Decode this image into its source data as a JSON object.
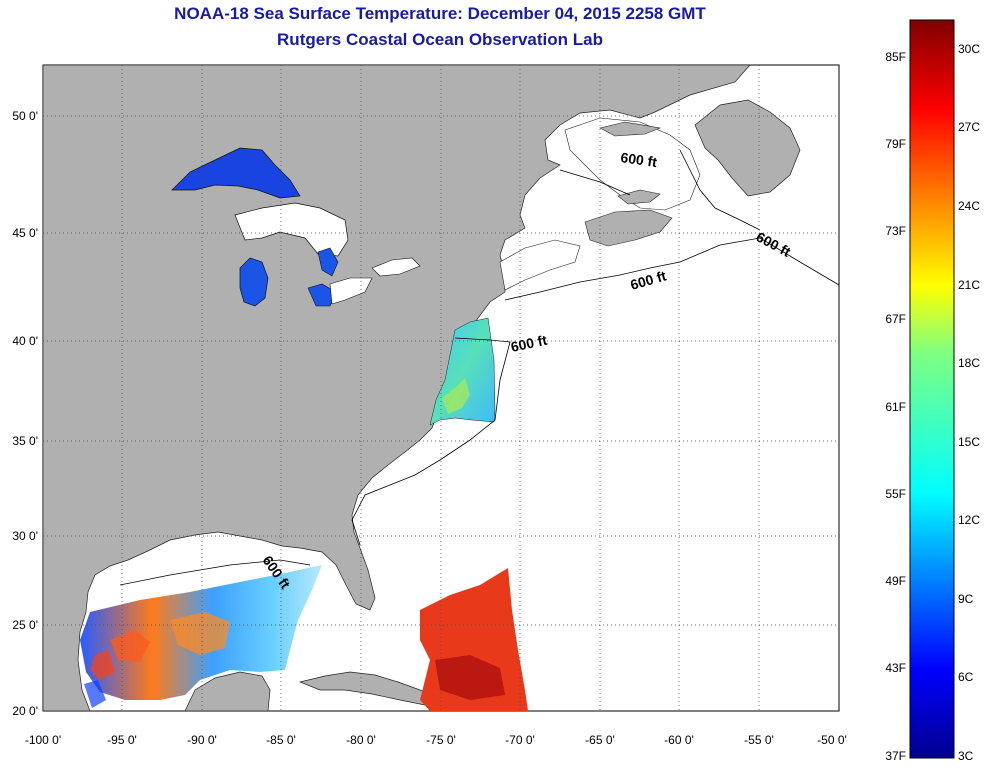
{
  "title": "NOAA-18 Sea Surface Temperature:  December 04, 2015 2258 GMT",
  "subtitle": "Rutgers Coastal Ocean Observation Lab",
  "lat_ticks": [
    "20 0'",
    "25 0'",
    "30 0'",
    "35 0'",
    "40 0'",
    "45 0'",
    "50 0'"
  ],
  "lon_ticks": [
    "-100 0'",
    "-95 0'",
    "-90 0'",
    "-85 0'",
    "-80 0'",
    "-75 0'",
    "-70 0'",
    "-65 0'",
    "-60 0'",
    "-55 0'",
    "-50 0'"
  ],
  "contour_labels": [
    "600 ft",
    "600 ft",
    "600 ft",
    "600 ft",
    "600 ft"
  ],
  "colorbar_f": [
    "85F",
    "79F",
    "73F",
    "67F",
    "61F",
    "55F",
    "49F",
    "43F",
    "37F"
  ],
  "colorbar_c": [
    "30C",
    "27C",
    "24C",
    "21C",
    "18C",
    "15C",
    "12C",
    "9C",
    "6C",
    "3C"
  ],
  "colors": {
    "land": "#b0b0b0",
    "title": "#1a1aa8",
    "ocean_nodata": "#ffffff"
  }
}
